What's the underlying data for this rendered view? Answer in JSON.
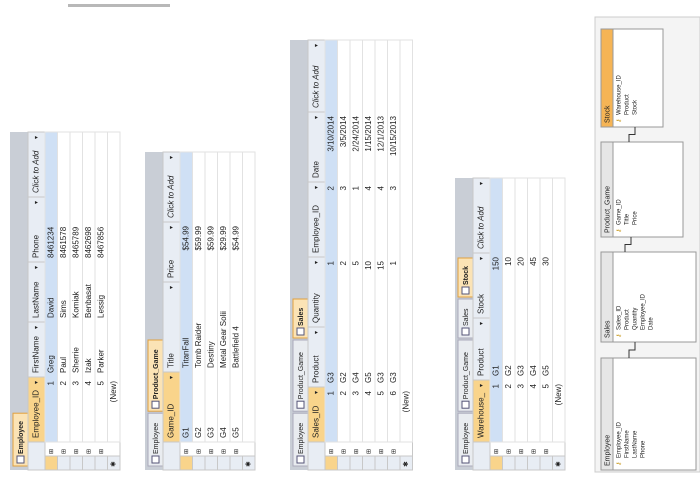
{
  "tables": [
    {
      "tabs": [
        "Employee"
      ],
      "columns": [
        "Employee_ID",
        "FirstName",
        "LastName",
        "Phone",
        "Click to Add"
      ],
      "rows": [
        [
          "1",
          "Greg",
          "David",
          "8461234"
        ],
        [
          "2",
          "Paul",
          "Sims",
          "8461578"
        ],
        [
          "3",
          "Sherrie",
          "Komiak",
          "8465789"
        ],
        [
          "4",
          "Izak",
          "Benbasat",
          "8462698"
        ],
        [
          "5",
          "Parker",
          "Lessig",
          "8467856"
        ]
      ],
      "new_row": "(New)"
    },
    {
      "tabs": [
        "Employee",
        "Product_Game"
      ],
      "columns": [
        "Game_ID",
        "Title",
        "Price",
        "Click to Add"
      ],
      "rows": [
        [
          "G1",
          "TitanFall",
          "$54.99"
        ],
        [
          "G2",
          "Tomb Raider",
          "$59.99"
        ],
        [
          "G3",
          "Destiny",
          "$59.99"
        ],
        [
          "G4",
          "Metal Gear Solii",
          "$29.99"
        ],
        [
          "G5",
          "Battlefield 4",
          "$54.99"
        ]
      ]
    },
    {
      "tabs": [
        "Employee",
        "Product_Game",
        "Sales"
      ],
      "columns": [
        "Sales_ID",
        "Product",
        "Quantity",
        "Employee_ID",
        "Date",
        "Click to Add"
      ],
      "rows": [
        [
          "1",
          "G3",
          "1",
          "2",
          "3/10/2014"
        ],
        [
          "2",
          "G2",
          "2",
          "3",
          "3/5/2014"
        ],
        [
          "3",
          "G4",
          "5",
          "1",
          "2/24/2014"
        ],
        [
          "4",
          "G5",
          "10",
          "4",
          "1/15/2014"
        ],
        [
          "5",
          "G3",
          "15",
          "4",
          "12/1/2013"
        ],
        [
          "6",
          "G3",
          "1",
          "3",
          "10/15/2013"
        ]
      ],
      "new_row": "(New)"
    },
    {
      "tabs": [
        "Employee",
        "Product_Game",
        "Sales",
        "Stock"
      ],
      "columns": [
        "Warehouse_",
        "Product",
        "Stock",
        "Click to Add"
      ],
      "rows": [
        [
          "1",
          "G1",
          "150"
        ],
        [
          "2",
          "G2",
          "10"
        ],
        [
          "3",
          "G3",
          "20"
        ],
        [
          "4",
          "G4",
          "45"
        ],
        [
          "5",
          "G5",
          "30"
        ]
      ],
      "new_row": "(New)"
    }
  ],
  "diagram": {
    "boxes": [
      {
        "title": "Employee",
        "fields": [
          "Employee_ID",
          "FirstName",
          "LastName",
          "Phone"
        ]
      },
      {
        "title": "Sales",
        "fields": [
          "Sales_ID",
          "Product",
          "Quantity",
          "Employee_ID",
          "Date"
        ]
      },
      {
        "title": "Product_Game",
        "fields": [
          "Game_ID",
          "Title",
          "Price"
        ]
      },
      {
        "title": "Stock",
        "fields": [
          "Warehouse_ID",
          "Product",
          "Stock"
        ]
      }
    ]
  }
}
